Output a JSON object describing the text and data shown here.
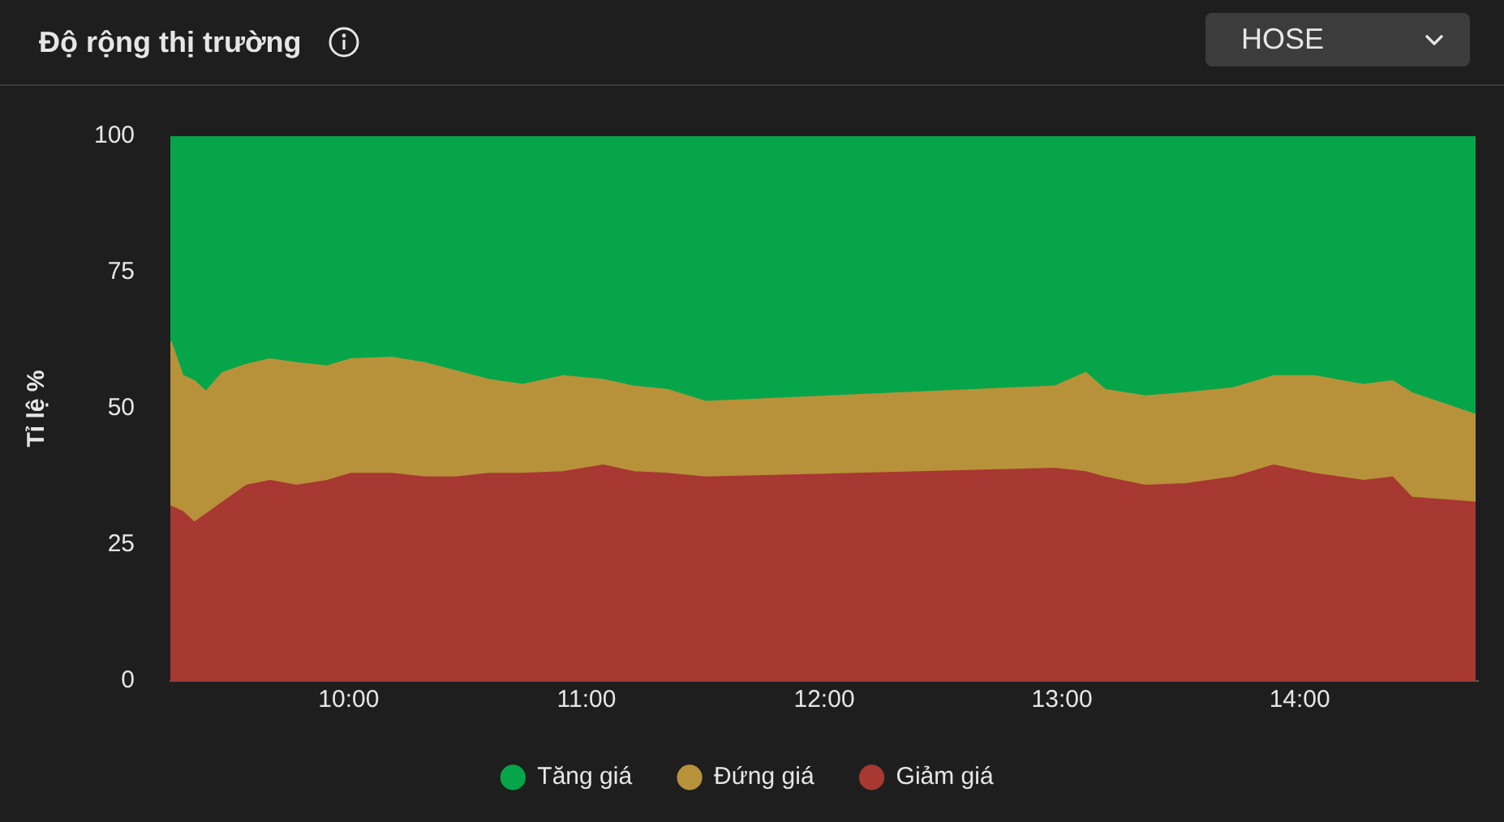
{
  "chart_data": {
    "type": "area",
    "title": "Độ rộng thị trường",
    "subtitle": "HOSE",
    "ylabel": "Tỉ lệ %",
    "stacked": true,
    "legend": "bottom",
    "grid": false,
    "x": [
      9.25,
      9.3,
      9.35,
      9.4,
      9.47,
      9.57,
      9.67,
      9.78,
      9.91,
      10.01,
      10.18,
      10.32,
      10.45,
      10.59,
      10.73,
      10.9,
      11.07,
      11.2,
      11.34,
      11.5,
      12.97,
      13.1,
      13.18,
      13.35,
      13.52,
      13.72,
      13.89,
      14.06,
      14.27,
      14.39,
      14.47,
      14.74
    ],
    "xlim": [
      9.25,
      14.75
    ],
    "xticks": [
      {
        "value": 10,
        "label": "10:00"
      },
      {
        "value": 11,
        "label": "11:00"
      },
      {
        "value": 12,
        "label": "12:00"
      },
      {
        "value": 13,
        "label": "13:00"
      },
      {
        "value": 14,
        "label": "14:00"
      }
    ],
    "ylim": [
      0,
      100
    ],
    "yticks": [
      0,
      25,
      50,
      75,
      100
    ],
    "series": [
      {
        "name": "Giảm giá",
        "color": "#a83832",
        "values": [
          32,
          31,
          29,
          30.5,
          32.7,
          35.8,
          36.7,
          35.8,
          36.7,
          38,
          38,
          37.3,
          37.3,
          38,
          38,
          38.3,
          39.5,
          38.3,
          38,
          37.3,
          38.9,
          38.3,
          37.3,
          35.8,
          36.1,
          37.3,
          39.5,
          38,
          36.7,
          37.3,
          33.6,
          32.7
        ]
      },
      {
        "name": "Đứng giá",
        "color": "#b8923a",
        "values": [
          30.3,
          25,
          26,
          22.5,
          23.8,
          22.2,
          22.3,
          22.5,
          21,
          21,
          21.3,
          21,
          19.5,
          17.2,
          16.3,
          17.6,
          15.7,
          15.7,
          15.4,
          13.9,
          15.1,
          18.2,
          16.1,
          16.4,
          16.7,
          16.4,
          16.4,
          17.9,
          17.6,
          17.7,
          19.2,
          16.1
        ]
      },
      {
        "name": "Tăng giá",
        "color": "#07a54a",
        "values": [
          37.7,
          44,
          45,
          47,
          43.5,
          42,
          41,
          41.7,
          42.3,
          41,
          40.7,
          41.7,
          43.2,
          44.8,
          45.7,
          44.1,
          44.8,
          46,
          46.6,
          48.8,
          46,
          43.5,
          46.6,
          47.8,
          47.2,
          46.3,
          44.1,
          44.1,
          45.7,
          45,
          47.2,
          51.2
        ]
      }
    ]
  }
}
